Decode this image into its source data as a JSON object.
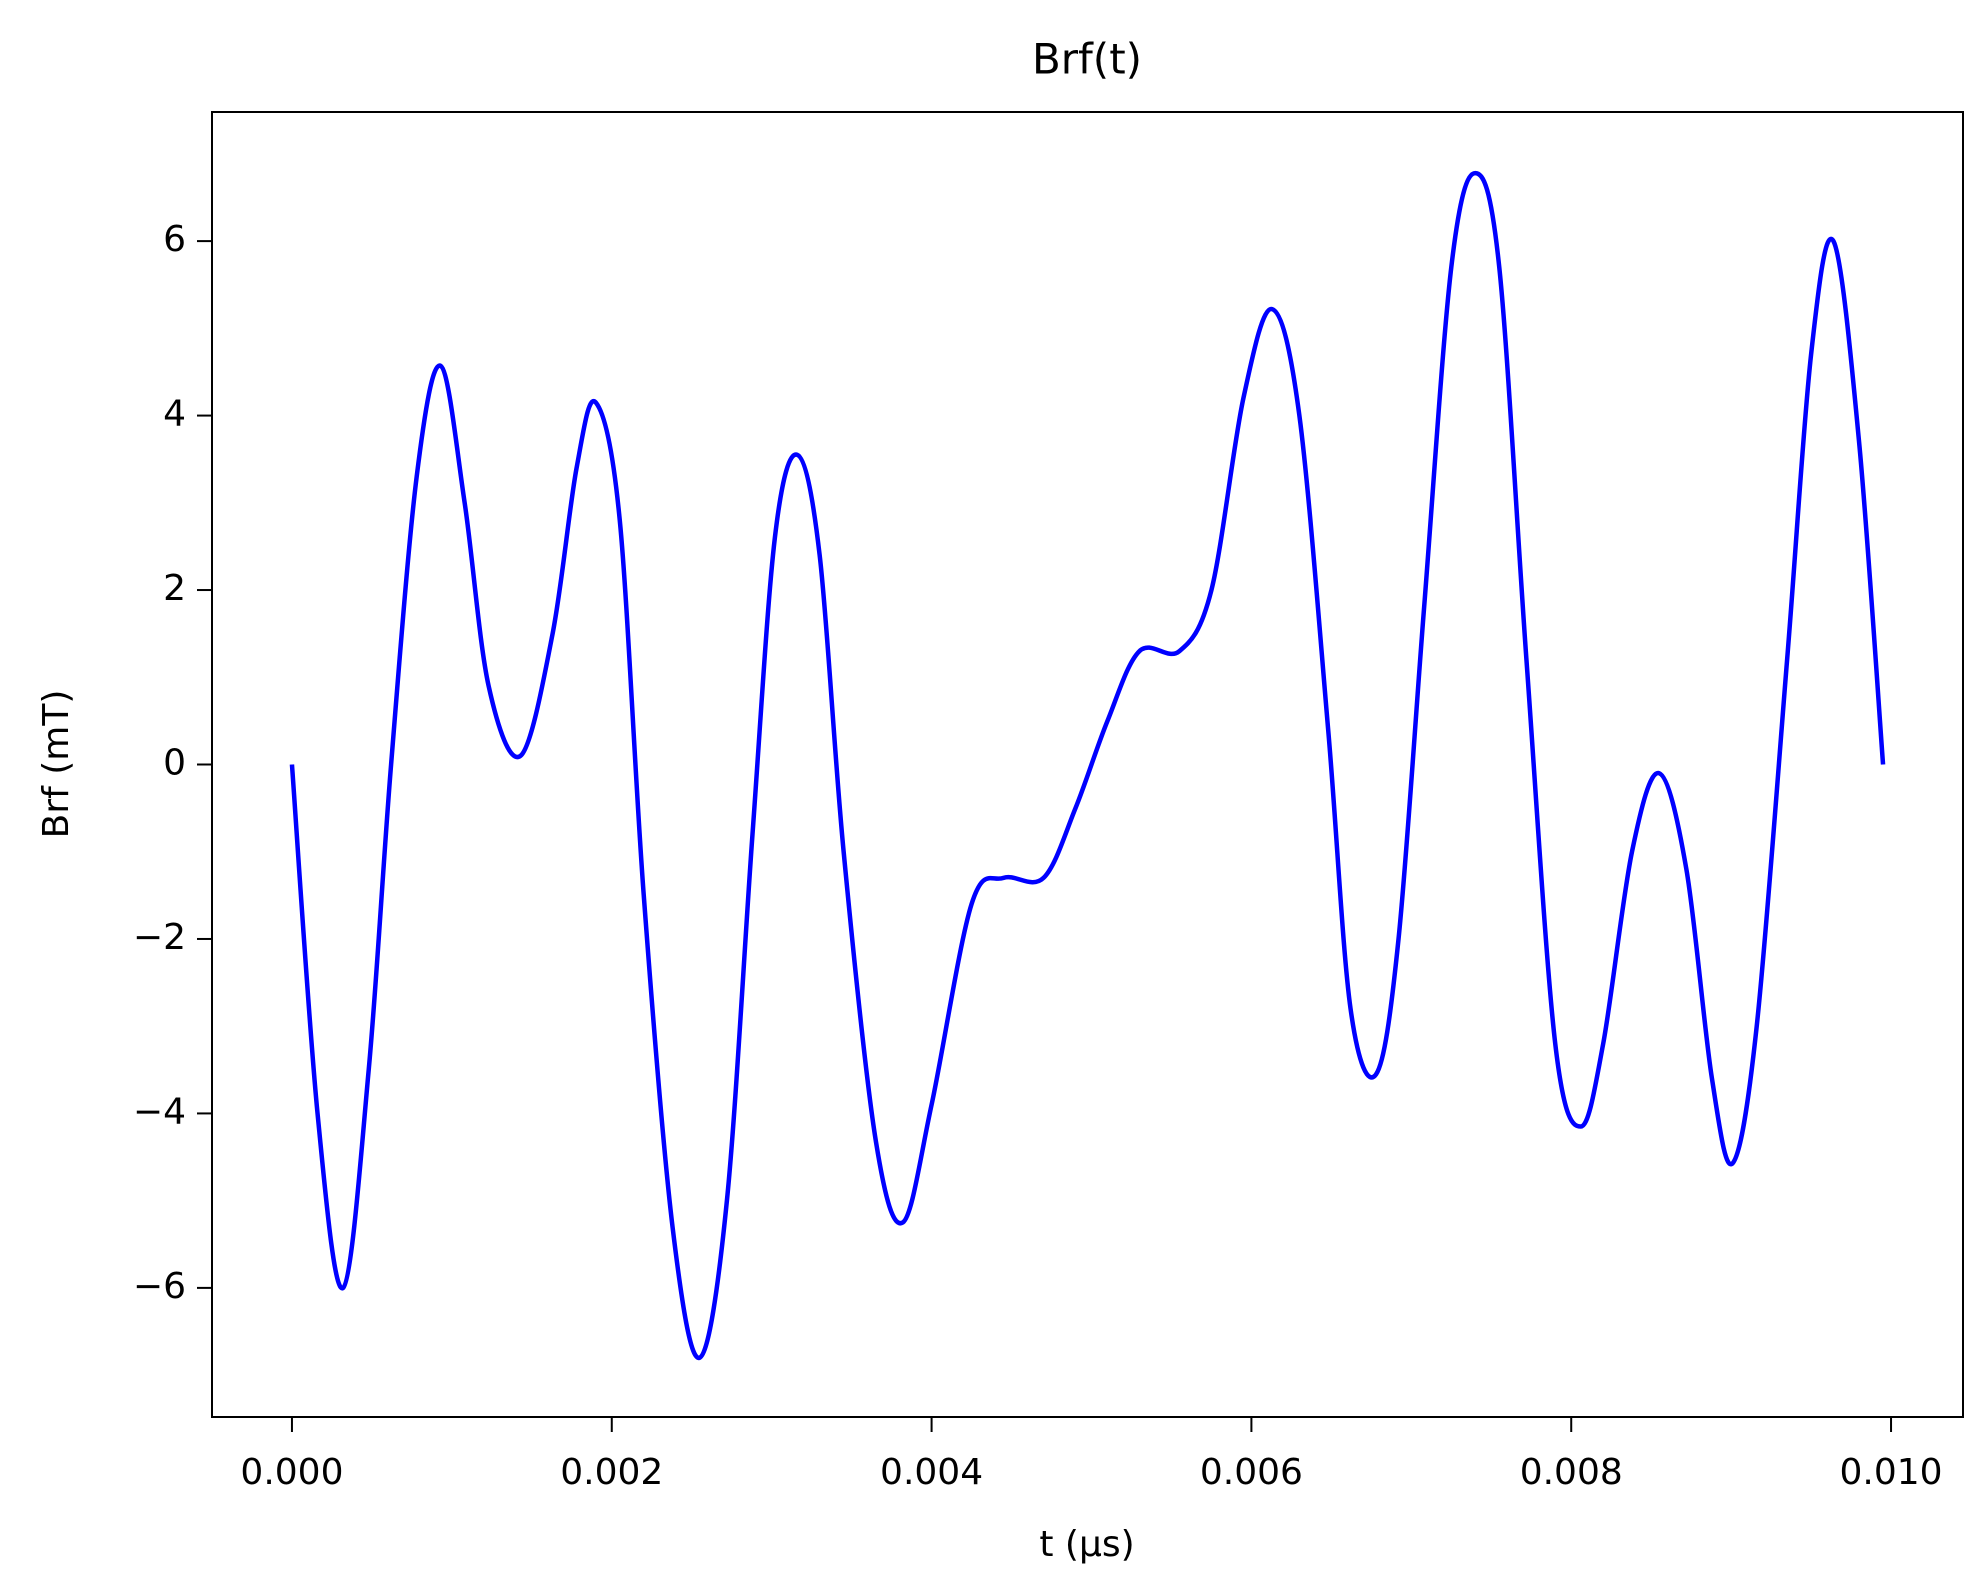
{
  "chart_data": {
    "type": "line",
    "title": "Brf(t)",
    "x_label": "t (µs)",
    "y_label": "Brf (mT)",
    "x": [
      0.0,
      0.00016,
      0.00032,
      0.00048,
      0.00062,
      0.00078,
      0.00093,
      0.00108,
      0.00123,
      0.00143,
      0.00163,
      0.00178,
      0.0019,
      0.00205,
      0.0022,
      0.00238,
      0.00255,
      0.00272,
      0.00288,
      0.00302,
      0.00316,
      0.0033,
      0.00345,
      0.00365,
      0.00382,
      0.004,
      0.00425,
      0.00445,
      0.0047,
      0.0049,
      0.0051,
      0.0053,
      0.00555,
      0.00575,
      0.00595,
      0.00613,
      0.0063,
      0.00648,
      0.00662,
      0.00678,
      0.00692,
      0.00708,
      0.00725,
      0.0074,
      0.00755,
      0.00772,
      0.0079,
      0.00806,
      0.0082,
      0.00838,
      0.00855,
      0.00872,
      0.00888,
      0.00901,
      0.00916,
      0.00935,
      0.0095,
      0.00964,
      0.0098,
      0.00995
    ],
    "series": [
      {
        "name": "Brf",
        "color": "#0000ff",
        "values": [
          0.0,
          -4.0,
          -6.0,
          -3.5,
          0.0,
          3.3,
          4.57,
          3.0,
          0.9,
          0.1,
          1.5,
          3.4,
          4.15,
          2.8,
          -1.5,
          -5.3,
          -6.8,
          -5.0,
          -0.8,
          2.6,
          3.55,
          2.4,
          -1.0,
          -4.3,
          -5.25,
          -3.9,
          -1.6,
          -1.3,
          -1.3,
          -0.5,
          0.5,
          1.3,
          1.3,
          2.0,
          4.2,
          5.22,
          4.0,
          0.4,
          -2.8,
          -3.55,
          -2.0,
          1.8,
          5.7,
          6.78,
          5.7,
          1.2,
          -3.2,
          -4.15,
          -3.2,
          -1.0,
          -0.1,
          -1.2,
          -3.6,
          -4.57,
          -3.0,
          1.2,
          4.7,
          6.0,
          3.7,
          0.0
        ]
      }
    ],
    "xlim": [
      -0.0005,
      0.01045
    ],
    "ylim": [
      -7.48,
      7.48
    ],
    "xticks": [
      {
        "value": 0,
        "label": "0.000"
      },
      {
        "value": 0.002,
        "label": "0.002"
      },
      {
        "value": 0.004,
        "label": "0.004"
      },
      {
        "value": 0.006,
        "label": "0.006"
      },
      {
        "value": 0.008,
        "label": "0.008"
      },
      {
        "value": 0.01,
        "label": "0.010"
      }
    ],
    "yticks": [
      {
        "value": -6,
        "label": "−6"
      },
      {
        "value": -4,
        "label": "−4"
      },
      {
        "value": -2,
        "label": "−2"
      },
      0,
      2,
      4,
      6
    ],
    "grid": false
  }
}
